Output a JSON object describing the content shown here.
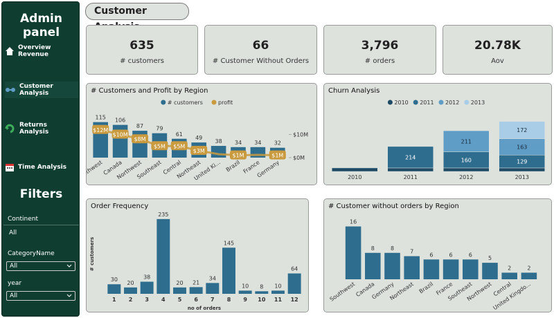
{
  "sidebar": {
    "title": "Admin panel",
    "nav": [
      "Overview Revenue",
      "Customer Analysis",
      "Returns Analysis",
      "Time Analysis"
    ],
    "filters_title": "Filters",
    "filters": [
      {
        "label": "Continent",
        "value": "All"
      },
      {
        "label": "CategoryName",
        "value": "All"
      },
      {
        "label": "year",
        "value": "All"
      }
    ]
  },
  "header": {
    "title": "Customer Analysis"
  },
  "kpis": [
    {
      "value": "635",
      "label": "# customers"
    },
    {
      "value": "66",
      "label": "# Customer Without Orders"
    },
    {
      "value": "3,796",
      "label": "# orders"
    },
    {
      "value": "20.78K",
      "label": "Aov"
    }
  ],
  "chart_data": [
    {
      "type": "combo",
      "title": "# Customers and Profit by Region",
      "categories": [
        "Southwest",
        "Canada",
        "Northwest",
        "Southeast",
        "Central",
        "Northeast",
        "United Ki...",
        "Brazil",
        "France",
        "Germany"
      ],
      "series": [
        {
          "name": "# customers",
          "color": "#2f6d8e",
          "values": [
            115,
            106,
            87,
            79,
            61,
            49,
            38,
            34,
            34,
            32
          ]
        },
        {
          "name": "profit",
          "color": "#c99a3e",
          "axis": "y2",
          "values": [
            12000000,
            10000000,
            8000000,
            5000000,
            5000000,
            3000000,
            1500000,
            1000000,
            1200000,
            1000000
          ],
          "value_labels": [
            "$12M",
            "$10M",
            "$8M",
            "$5M",
            "$5M",
            "$3M",
            null,
            "$1M",
            null,
            "$1M"
          ]
        }
      ],
      "ylim": [
        0,
        150
      ],
      "y2lim": [
        0,
        20000000
      ],
      "y2ticks": [
        {
          "value": 0,
          "label": "$0M"
        },
        {
          "value": 10000000,
          "label": "$10M"
        }
      ]
    },
    {
      "type": "stacked_bar",
      "title": "Churn Analysis",
      "categories": [
        "2010",
        "2011",
        "2012",
        "2013"
      ],
      "series": [
        {
          "name": "2010",
          "color": "#1f4a66",
          "values": [
            35,
            35,
            35,
            35
          ]
        },
        {
          "name": "2011",
          "color": "#2f6d8e",
          "values": [
            null,
            214,
            160,
            129
          ]
        },
        {
          "name": "2012",
          "color": "#5f9cc6",
          "values": [
            null,
            null,
            211,
            163
          ]
        },
        {
          "name": "2013",
          "color": "#a9cde6",
          "values": [
            null,
            null,
            null,
            172
          ]
        }
      ],
      "ylim": [
        0,
        600
      ]
    },
    {
      "type": "bar",
      "title": "Order Frequency",
      "categories": [
        1,
        2,
        3,
        4,
        5,
        6,
        7,
        8,
        9,
        10,
        11,
        12
      ],
      "values": [
        30,
        20,
        38,
        235,
        20,
        21,
        34,
        145,
        10,
        8,
        10,
        64
      ],
      "color": "#2f6d8e",
      "y_label": "# customers",
      "x_label": "no of orders",
      "ylim": [
        0,
        250
      ]
    },
    {
      "type": "bar",
      "title": "# Customer without orders by Region",
      "categories": [
        "Southwest",
        "Canada",
        "Germany",
        "Northeast",
        "Brazil",
        "France",
        "Southeast",
        "Northwest",
        "Central",
        "United Kingdo..."
      ],
      "values": [
        16,
        8,
        8,
        7,
        6,
        6,
        6,
        5,
        2,
        2
      ],
      "color": "#2f6d8e",
      "ylim": [
        0,
        18
      ]
    }
  ]
}
